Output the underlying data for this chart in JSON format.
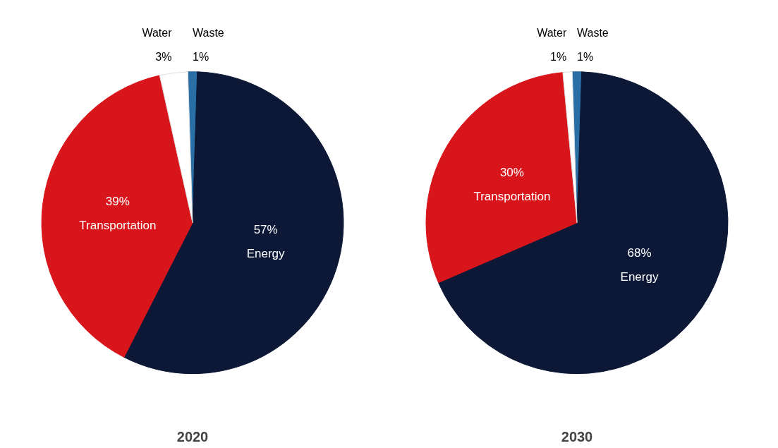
{
  "chart_data": [
    {
      "type": "pie",
      "title": "2020",
      "categories": [
        "Waste",
        "Energy",
        "Transportation",
        "Water"
      ],
      "values": [
        1,
        57,
        39,
        3
      ],
      "value_labels": [
        "1%",
        "57%",
        "39%",
        "3%"
      ],
      "colors": [
        "#2a6ea6",
        "#0c1836",
        "#d8151b",
        "#ffffff"
      ],
      "legend": false
    },
    {
      "type": "pie",
      "title": "2030",
      "categories": [
        "Waste",
        "Energy",
        "Transportation",
        "Water"
      ],
      "values": [
        1,
        68,
        30,
        1
      ],
      "value_labels": [
        "1%",
        "68%",
        "30%",
        "1%"
      ],
      "colors": [
        "#2a6ea6",
        "#0c1836",
        "#d8151b",
        "#ffffff"
      ],
      "legend": false
    }
  ]
}
